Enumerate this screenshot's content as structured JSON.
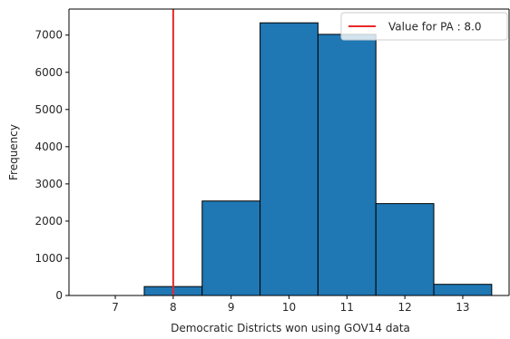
{
  "chart_data": {
    "type": "bar",
    "subtype": "histogram",
    "title": "",
    "xlabel": "Democratic Districts won using GOV14 data",
    "ylabel": "Frequency",
    "bin_width": 1,
    "bins": [
      {
        "center": 7,
        "value": 0
      },
      {
        "center": 8,
        "value": 240
      },
      {
        "center": 9,
        "value": 2540
      },
      {
        "center": 10,
        "value": 7330
      },
      {
        "center": 11,
        "value": 7020
      },
      {
        "center": 12,
        "value": 2470
      },
      {
        "center": 13,
        "value": 300
      }
    ],
    "xlim": [
      6.2,
      13.8
    ],
    "ylim": [
      0,
      7700
    ],
    "xticks": [
      7,
      8,
      9,
      10,
      11,
      12,
      13
    ],
    "yticks": [
      0,
      1000,
      2000,
      3000,
      4000,
      5000,
      6000,
      7000
    ],
    "bar_color": "#1f77b4",
    "bar_edge_color": "#000000",
    "reference_line": {
      "x": 8.0,
      "color": "#e8282a",
      "label": "Value for PA : 8.0"
    },
    "legend": {
      "placement": "top-right",
      "entries": [
        "Value for PA : 8.0"
      ]
    },
    "grid": false
  }
}
